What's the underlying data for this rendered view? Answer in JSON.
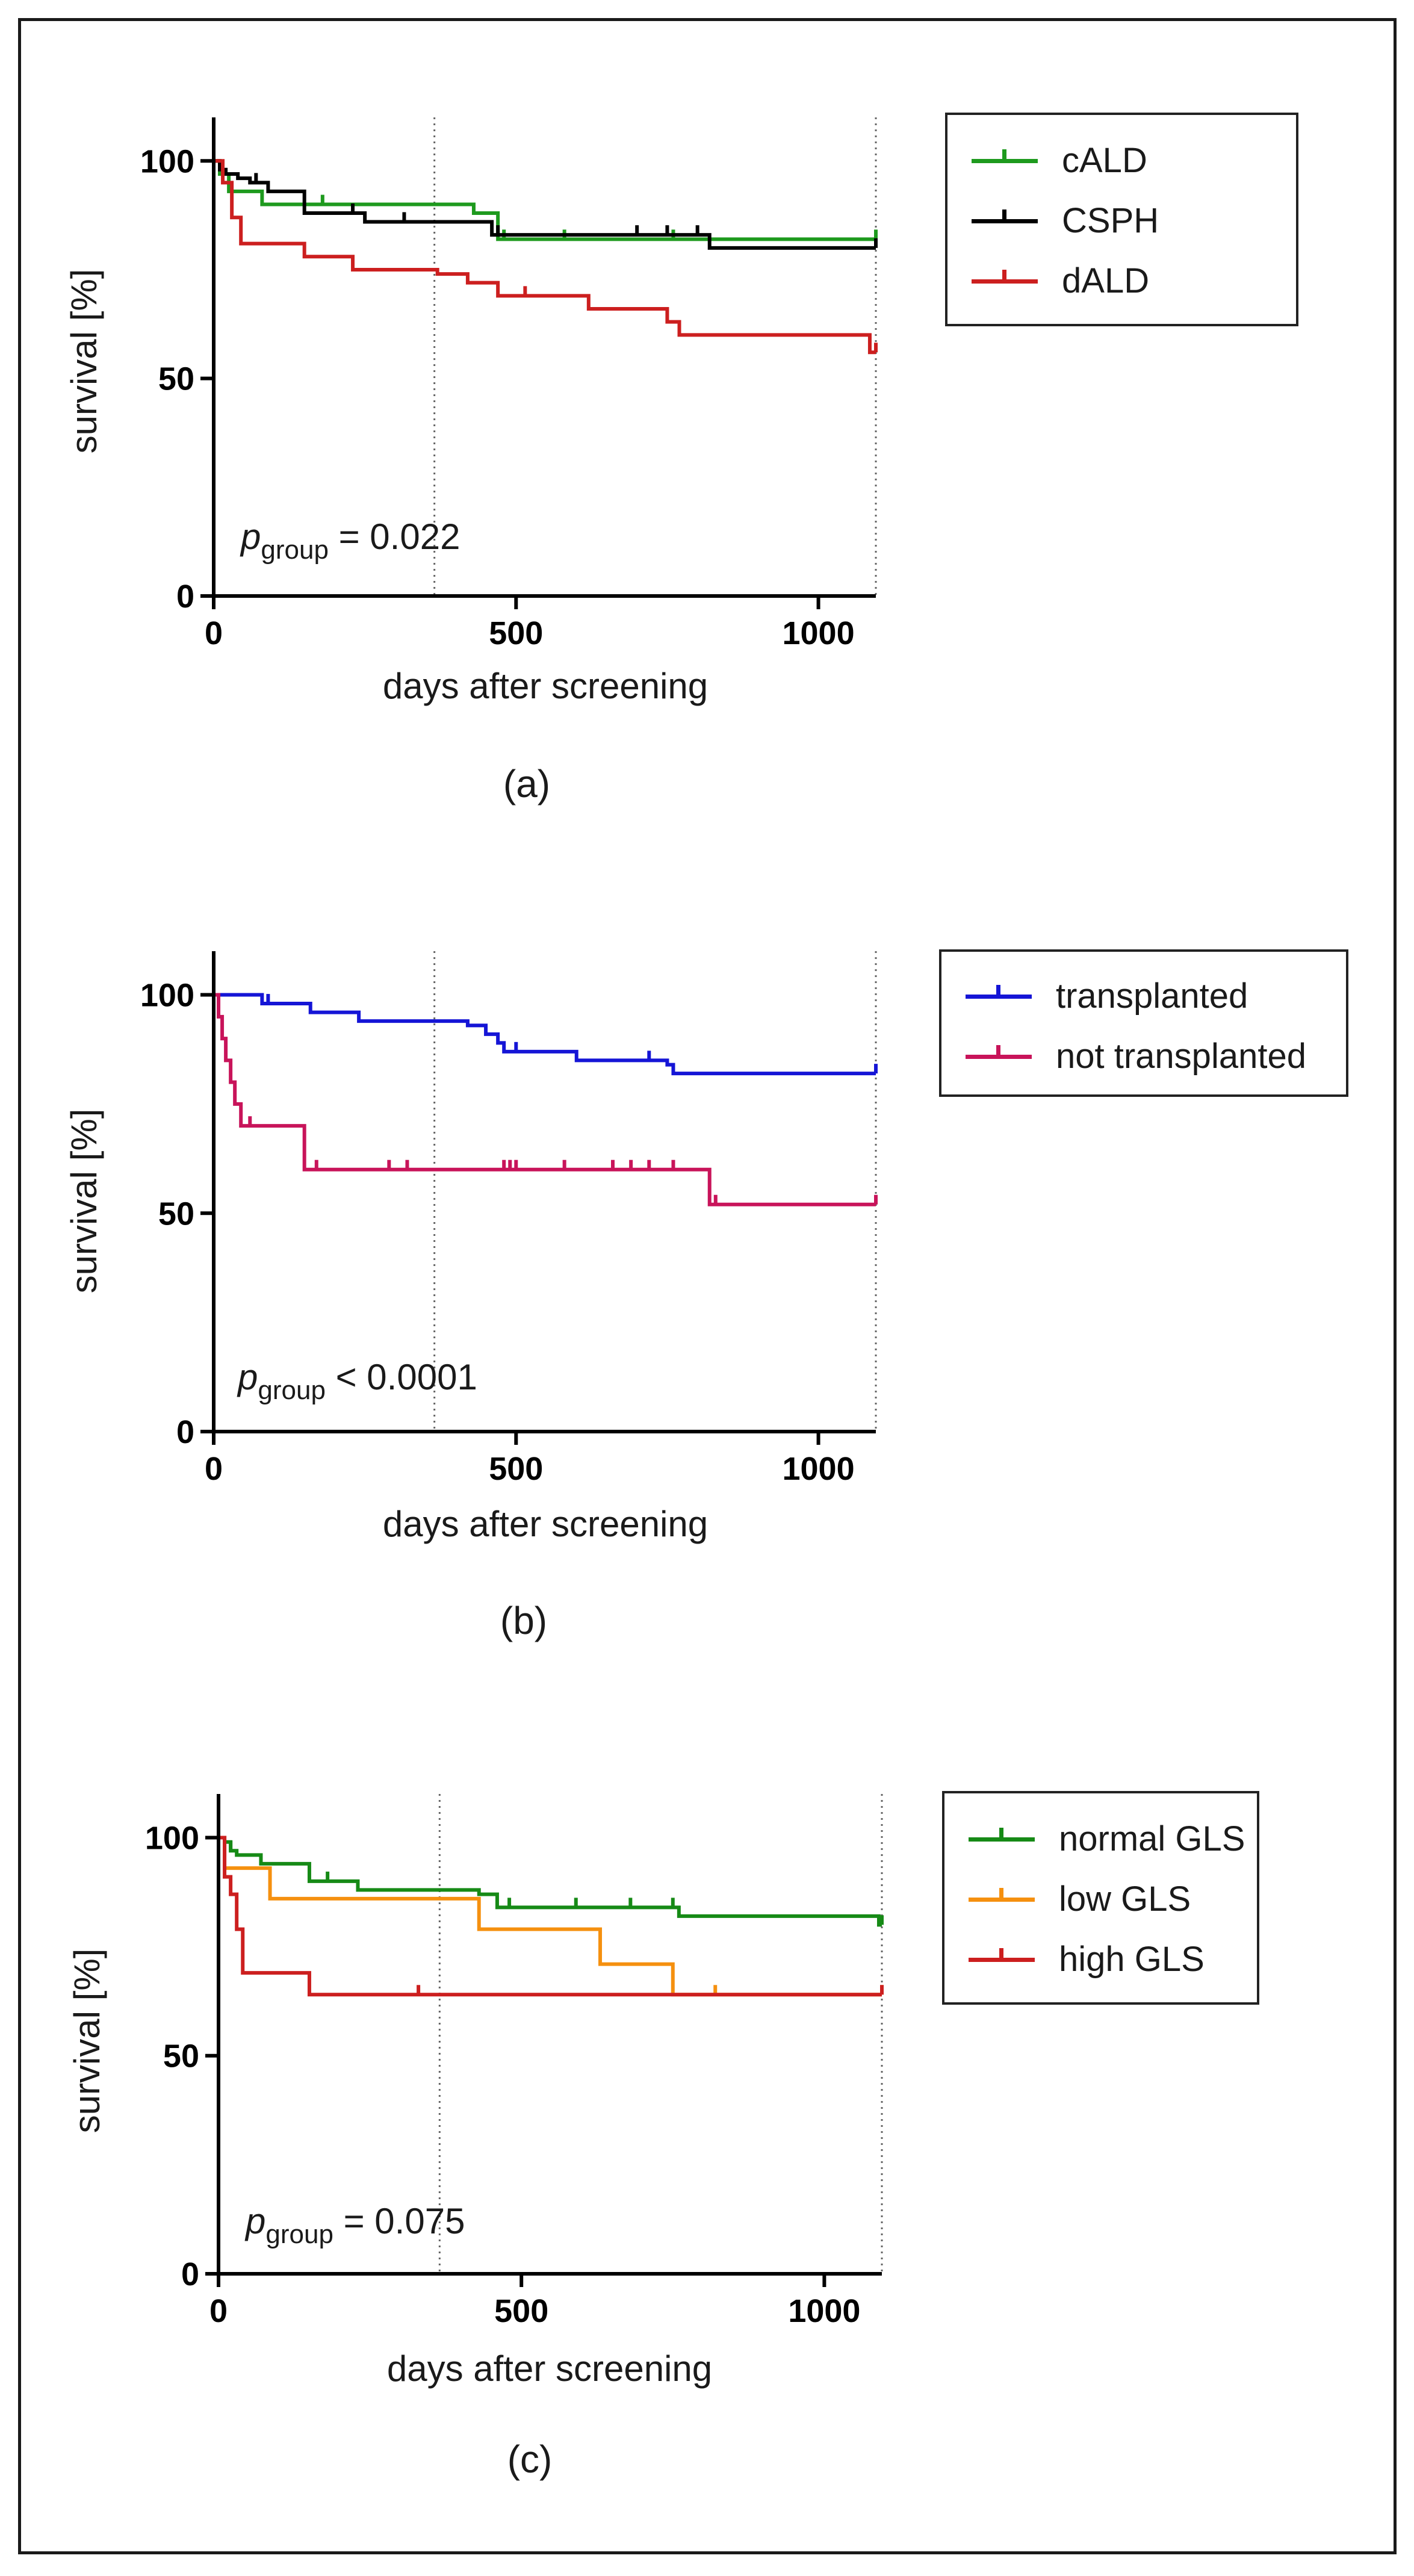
{
  "panels": [
    {
      "caption": "(a)",
      "p_symbol": "p",
      "p_subscript": "group",
      "p_text": " = 0.022",
      "legend": [
        {
          "label": "cALD",
          "color": "#1e9a1e"
        },
        {
          "label": "CSPH",
          "color": "#000000"
        },
        {
          "label": "dALD",
          "color": "#cc1f1f"
        }
      ]
    },
    {
      "caption": "(b)",
      "p_symbol": "p",
      "p_subscript": "group",
      "p_text": " < 0.0001",
      "legend": [
        {
          "label": "transplanted",
          "color": "#1515d6"
        },
        {
          "label": "not transplanted",
          "color": "#c8145a"
        }
      ]
    },
    {
      "caption": "(c)",
      "p_symbol": "p",
      "p_subscript": "group",
      "p_text": " = 0.075",
      "legend": [
        {
          "label": "normal GLS",
          "color": "#168a16"
        },
        {
          "label": "low GLS",
          "color": "#f5900f"
        },
        {
          "label": "high GLS",
          "color": "#cc1f1f"
        }
      ]
    }
  ],
  "chart_data": [
    {
      "type": "line",
      "chart_subtype": "kaplan-meier step",
      "xlabel": "days after screening",
      "ylabel": "survival [%]",
      "xlim": [
        0,
        1095
      ],
      "ylim": [
        0,
        110
      ],
      "xticks": [
        0,
        500,
        1000
      ],
      "yticks": [
        0,
        50,
        100
      ],
      "reference_lines_x": [
        365,
        1095
      ],
      "legend_position": "top-right, outside plot",
      "series": [
        {
          "name": "cALD",
          "color": "#1e9a1e",
          "x": [
            0,
            10,
            25,
            80,
            430,
            470,
            1095
          ],
          "y": [
            100,
            97,
            93,
            90,
            88,
            82,
            82
          ],
          "censor_x": [
            180,
            480,
            580,
            760,
            1095
          ]
        },
        {
          "name": "CSPH",
          "color": "#000000",
          "x": [
            0,
            10,
            20,
            40,
            60,
            90,
            150,
            250,
            460,
            820,
            1095
          ],
          "y": [
            100,
            98,
            97,
            96,
            95,
            93,
            88,
            86,
            83,
            80,
            80
          ],
          "censor_x": [
            70,
            230,
            315,
            470,
            700,
            750,
            800,
            1095
          ]
        },
        {
          "name": "dALD",
          "color": "#cc1f1f",
          "x": [
            0,
            15,
            30,
            45,
            150,
            230,
            370,
            420,
            470,
            620,
            750,
            770,
            1085,
            1095
          ],
          "y": [
            100,
            95,
            87,
            81,
            78,
            75,
            74,
            72,
            69,
            66,
            63,
            60,
            56,
            56
          ],
          "censor_x": [
            515,
            1095
          ]
        }
      ]
    },
    {
      "type": "line",
      "chart_subtype": "kaplan-meier step",
      "xlabel": "days after screening",
      "ylabel": "survival [%]",
      "xlim": [
        0,
        1095
      ],
      "ylim": [
        0,
        110
      ],
      "xticks": [
        0,
        500,
        1000
      ],
      "yticks": [
        0,
        50,
        100
      ],
      "reference_lines_x": [
        365,
        1095
      ],
      "legend_position": "top-right, outside plot",
      "series": [
        {
          "name": "transplanted",
          "color": "#1515d6",
          "x": [
            0,
            80,
            160,
            240,
            420,
            450,
            470,
            480,
            600,
            750,
            760,
            1080,
            1095
          ],
          "y": [
            100,
            98,
            96,
            94,
            93,
            91,
            89,
            87,
            85,
            84,
            82,
            82,
            82
          ],
          "censor_x": [
            90,
            500,
            720,
            1095
          ]
        },
        {
          "name": "not transplanted",
          "color": "#c8145a",
          "x": [
            0,
            8,
            14,
            20,
            28,
            35,
            45,
            150,
            820,
            1095
          ],
          "y": [
            100,
            95,
            90,
            85,
            80,
            75,
            70,
            60,
            52,
            52
          ],
          "censor_x": [
            60,
            170,
            290,
            320,
            480,
            490,
            500,
            580,
            660,
            690,
            720,
            760,
            830,
            1095
          ]
        }
      ]
    },
    {
      "type": "line",
      "chart_subtype": "kaplan-meier step",
      "xlabel": "days after screening",
      "ylabel": "survival [%]",
      "xlim": [
        0,
        1095
      ],
      "ylim": [
        0,
        110
      ],
      "xticks": [
        0,
        500,
        1000
      ],
      "yticks": [
        0,
        50,
        100
      ],
      "reference_lines_x": [
        365,
        1095
      ],
      "legend_position": "top-right, outside plot",
      "series": [
        {
          "name": "normal GLS",
          "color": "#168a16",
          "x": [
            0,
            10,
            20,
            30,
            70,
            150,
            230,
            430,
            460,
            760,
            1090,
            1095
          ],
          "y": [
            100,
            99,
            97,
            96,
            94,
            90,
            88,
            87,
            84,
            82,
            80,
            80
          ],
          "censor_x": [
            20,
            180,
            480,
            590,
            680,
            750,
            1095
          ]
        },
        {
          "name": "low GLS",
          "color": "#f5900f",
          "x": [
            0,
            10,
            85,
            430,
            630,
            750,
            1095
          ],
          "y": [
            100,
            93,
            86,
            79,
            71,
            64,
            64
          ],
          "censor_x": [
            820,
            1095
          ]
        },
        {
          "name": "high GLS",
          "color": "#cc1f1f",
          "x": [
            0,
            10,
            20,
            30,
            40,
            150,
            1095
          ],
          "y": [
            100,
            91,
            87,
            79,
            69,
            64,
            64
          ],
          "censor_x": [
            330,
            1095
          ]
        }
      ]
    }
  ]
}
